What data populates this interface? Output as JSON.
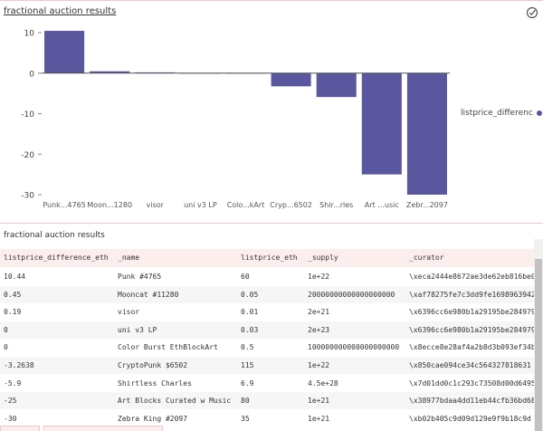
{
  "card": {
    "title": "fractional auction results",
    "verified_icon": "check-circle-icon"
  },
  "chart_data": {
    "type": "bar",
    "categories": [
      "Punk...4765",
      "Moon...1280",
      "visor",
      "uni v3 LP",
      "Colo...kArt",
      "Cryp...6502",
      "Shir...rles",
      "Art ...usic",
      "Zebr...2097"
    ],
    "series": [
      {
        "name": "listprice_differenc",
        "values": [
          10.44,
          0.45,
          0.19,
          0,
          0,
          -3.2638,
          -5.9,
          -25,
          -30
        ]
      }
    ],
    "yticks": [
      10,
      0,
      -10,
      -20,
      -30
    ],
    "ylim": [
      -30,
      10
    ],
    "bar_color": "#5b579e",
    "legend_placement": "right",
    "title": "",
    "xlabel": "",
    "ylabel": ""
  },
  "table": {
    "caption": "fractional auction results",
    "columns": [
      "listprice_difference_eth",
      "_name",
      "listprice_eth",
      "_supply",
      "_curator"
    ],
    "rows": [
      [
        "10.44",
        "Punk #4765",
        "60",
        "1e+22",
        "\\xeca2444e8672ae3de62eb816be0"
      ],
      [
        "0.45",
        "Mooncat #11280",
        "0.05",
        "20000000000000000000",
        "\\xaf78275fe7c3dd9fe1698963942"
      ],
      [
        "0.19",
        "visor",
        "0.01",
        "2e+21",
        "\\x6396cc6e980b1a29195be284979"
      ],
      [
        "0",
        "uni v3 LP",
        "0.03",
        "2e+23",
        "\\x6396cc6e980b1a29195be284979"
      ],
      [
        "0",
        "Color Burst EthBlockArt",
        "0.5",
        "100000000000000000000",
        "\\x8ecce8e28af4a2b8d3b093ef34b"
      ],
      [
        "-3.2638",
        "CryptoPunk $6502",
        "115",
        "1e+22",
        "\\x850cae094ce34c564327818631 2"
      ],
      [
        "-5.9",
        "Shirtless Charles",
        "6.9",
        "4.5e+28",
        "\\x7d01dd0c1c293c73508d00d6495"
      ],
      [
        "-25",
        "Art Blocks Curated w Music",
        "80",
        "1e+21",
        "\\x38977bdaa4dd11eb44cfb36bd68"
      ],
      [
        "-30",
        "Zebra King #2097",
        "35",
        "1e+21",
        "\\xb02b405c9d09d129e9f9b18c9d"
      ]
    ]
  }
}
